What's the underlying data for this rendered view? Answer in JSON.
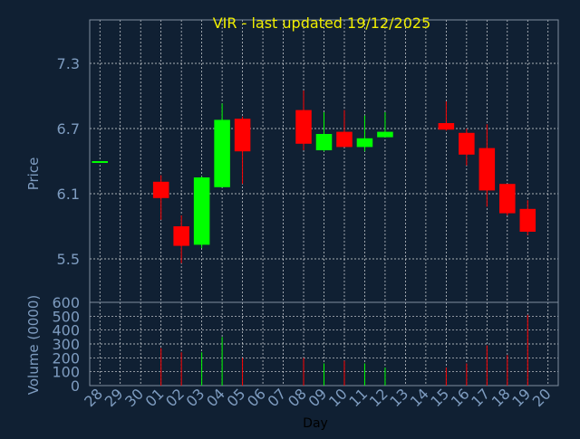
{
  "chart_data": {
    "type": "candlestick",
    "title": "VIR - last updated 19/12/2025",
    "xlabel": "Day",
    "price_panel": {
      "ylabel": "Price",
      "ylim": [
        5.1,
        7.7
      ],
      "yticks": [
        "5.5",
        "6.1",
        "6.7",
        "7.3"
      ],
      "grid": true
    },
    "volume_panel": {
      "ylabel": "Volume (0000)",
      "ylim": [
        0,
        600
      ],
      "yticks": [
        "0",
        "100",
        "200",
        "300",
        "400",
        "500",
        "600"
      ],
      "grid": true
    },
    "x_labels": [
      "28",
      "29",
      "30",
      "01",
      "02",
      "03",
      "04",
      "05",
      "06",
      "07",
      "08",
      "09",
      "10",
      "11",
      "12",
      "13",
      "14",
      "15",
      "16",
      "17",
      "18",
      "19",
      "20"
    ],
    "candles": [
      {
        "day": "28",
        "open": 6.4,
        "high": 6.4,
        "low": 6.4,
        "close": 6.4,
        "volume": 0
      },
      {
        "day": "01",
        "open": 6.21,
        "high": 6.27,
        "low": 5.86,
        "close": 6.06,
        "volume": 270
      },
      {
        "day": "02",
        "open": 5.8,
        "high": 5.9,
        "low": 5.46,
        "close": 5.62,
        "volume": 240
      },
      {
        "day": "03",
        "open": 5.63,
        "high": 6.26,
        "low": 5.6,
        "close": 6.25,
        "volume": 240
      },
      {
        "day": "04",
        "open": 6.16,
        "high": 6.93,
        "low": 6.16,
        "close": 6.78,
        "volume": 350
      },
      {
        "day": "05",
        "open": 6.79,
        "high": 6.81,
        "low": 6.19,
        "close": 6.49,
        "volume": 200
      },
      {
        "day": "08",
        "open": 6.87,
        "high": 7.05,
        "low": 6.5,
        "close": 6.56,
        "volume": 200
      },
      {
        "day": "09",
        "open": 6.5,
        "high": 6.85,
        "low": 6.49,
        "close": 6.65,
        "volume": 160
      },
      {
        "day": "10",
        "open": 6.67,
        "high": 6.87,
        "low": 6.53,
        "close": 6.53,
        "volume": 180
      },
      {
        "day": "11",
        "open": 6.53,
        "high": 6.82,
        "low": 6.49,
        "close": 6.61,
        "volume": 160
      },
      {
        "day": "12",
        "open": 6.62,
        "high": 6.85,
        "low": 6.62,
        "close": 6.67,
        "volume": 130
      },
      {
        "day": "15",
        "open": 6.75,
        "high": 6.95,
        "low": 6.68,
        "close": 6.69,
        "volume": 130
      },
      {
        "day": "16",
        "open": 6.66,
        "high": 6.7,
        "low": 6.36,
        "close": 6.46,
        "volume": 160
      },
      {
        "day": "17",
        "open": 6.52,
        "high": 6.74,
        "low": 5.98,
        "close": 6.13,
        "volume": 290
      },
      {
        "day": "18",
        "open": 6.19,
        "high": 6.19,
        "low": 5.9,
        "close": 5.92,
        "volume": 220
      },
      {
        "day": "19",
        "open": 5.96,
        "high": 6.04,
        "low": 5.72,
        "close": 5.75,
        "volume": 510
      }
    ],
    "colors": {
      "background": "#102033",
      "grid": "#ffffff",
      "axis_text": "#7e9cc0",
      "title": "#f0ee00",
      "up": "#00ff00",
      "down": "#ff0000",
      "frame": "#7f8e9f"
    }
  }
}
